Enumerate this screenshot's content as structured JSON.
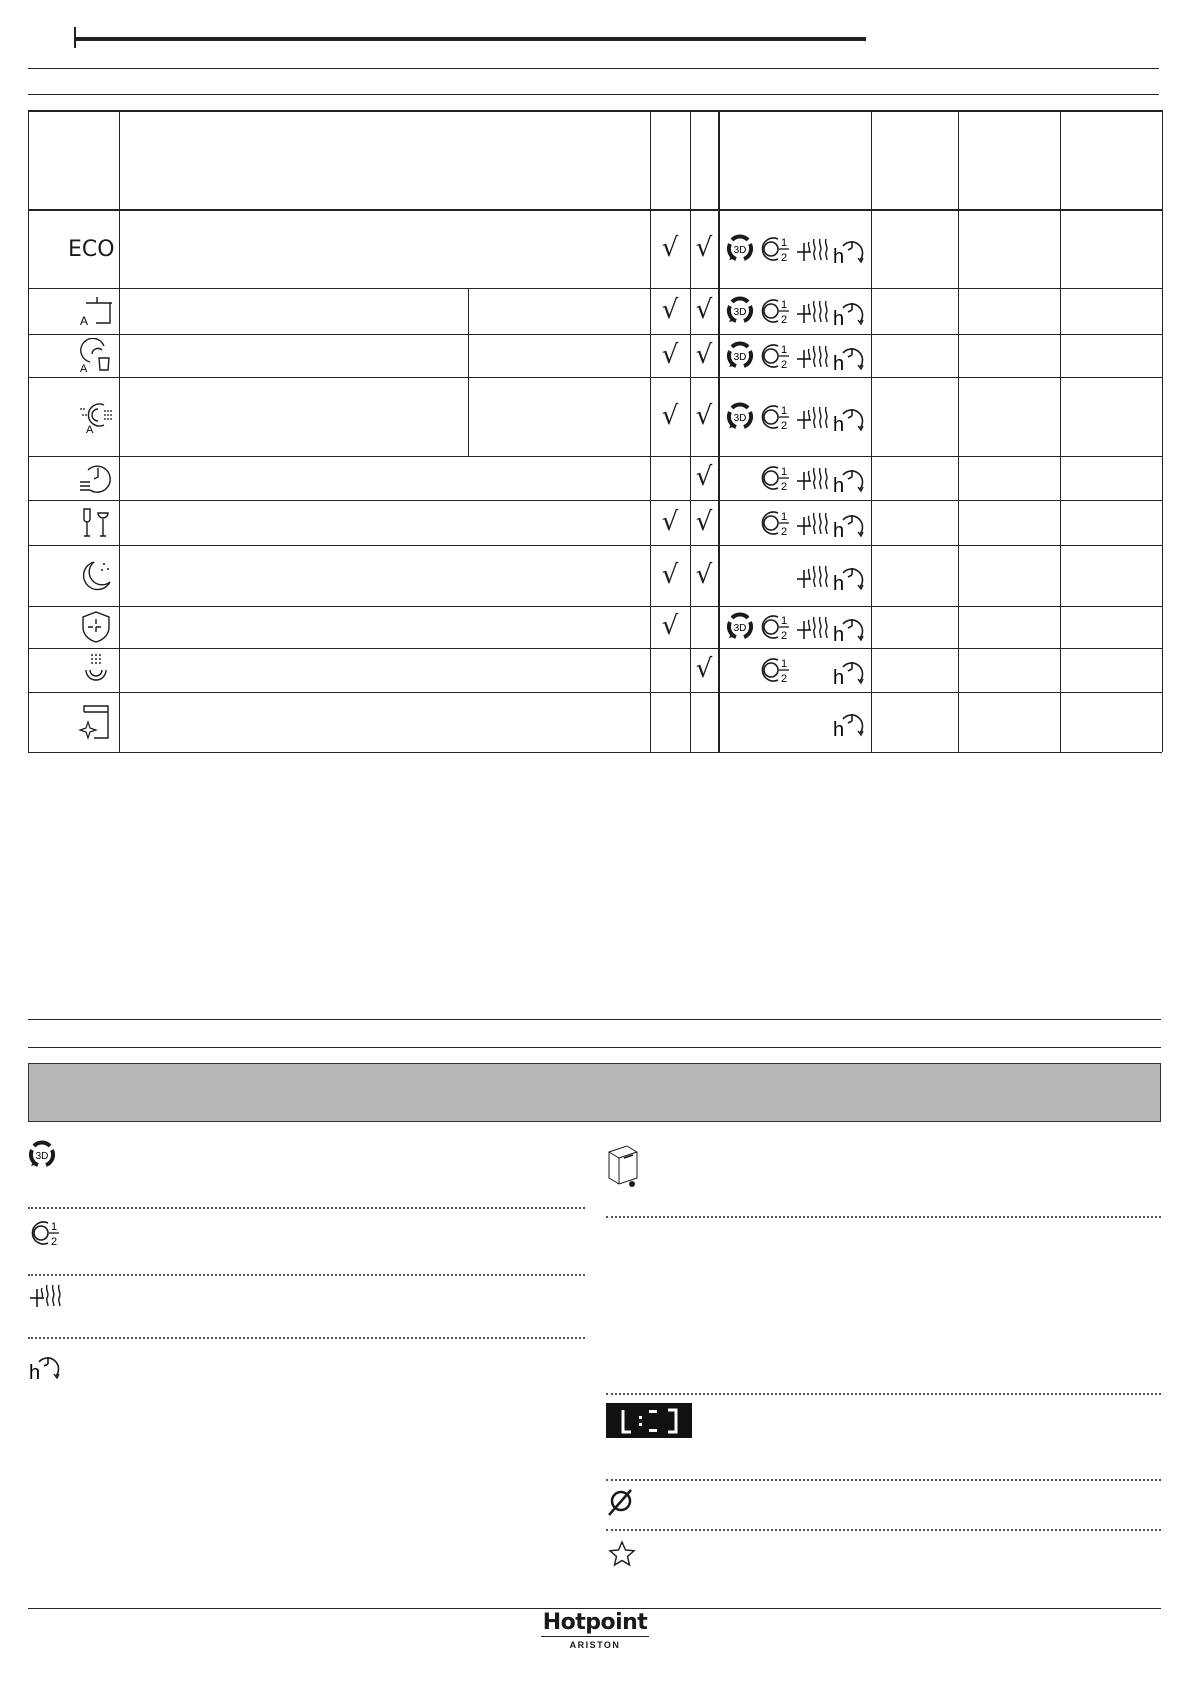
{
  "table": {
    "check_glyph": "√",
    "rows": [
      {
        "icon": "eco-text",
        "label": "ECO",
        "check1": true,
        "check2": true,
        "options": [
          "3d-zone-wash",
          "half-load",
          "extra-dry",
          "delay-start"
        ]
      },
      {
        "icon": "pot-auto-icon",
        "check1": true,
        "check2": true,
        "options": [
          "3d-zone-wash",
          "half-load",
          "extra-dry",
          "delay-start"
        ]
      },
      {
        "icon": "glass-auto-icon",
        "check1": true,
        "check2": true,
        "options": [
          "3d-zone-wash",
          "half-load",
          "extra-dry",
          "delay-start"
        ]
      },
      {
        "icon": "fast-auto-icon",
        "check1": true,
        "check2": true,
        "options": [
          "3d-zone-wash",
          "half-load",
          "extra-dry",
          "delay-start"
        ]
      },
      {
        "icon": "quick-timer-icon",
        "check1": false,
        "check2": true,
        "options": [
          "half-load",
          "extra-dry",
          "delay-start"
        ]
      },
      {
        "icon": "glasses-icon",
        "check1": true,
        "check2": true,
        "options": [
          "half-load",
          "extra-dry",
          "delay-start"
        ]
      },
      {
        "icon": "night-moon-icon",
        "check1": true,
        "check2": true,
        "options": [
          "extra-dry",
          "delay-start"
        ]
      },
      {
        "icon": "sanitize-shield-icon",
        "check1": true,
        "check2": false,
        "options": [
          "3d-zone-wash",
          "half-load",
          "extra-dry",
          "delay-start"
        ]
      },
      {
        "icon": "prewash-icon",
        "check1": false,
        "check2": true,
        "options": [
          "half-load",
          "delay-start"
        ]
      },
      {
        "icon": "machine-clean-icon",
        "check1": false,
        "check2": false,
        "options": [
          "delay-start"
        ]
      }
    ]
  },
  "option_glyphs": {
    "three_d": "3D",
    "half_num": "1",
    "half_den": "2",
    "hour": "h"
  },
  "legend_left": [
    "3d-zone-wash",
    "half-load",
    "extra-dry",
    "delay-start"
  ],
  "legend_right": [
    "dishwasher-icon",
    "display-icon",
    "no-rinse-aid-icon",
    "star-icon"
  ],
  "footer": {
    "brand": "Hotpoint",
    "sub_brand": "ARISTON"
  },
  "colors": {
    "banner": "#b8b8b8",
    "ink": "#1a1a1a",
    "display_bg": "#111111"
  }
}
